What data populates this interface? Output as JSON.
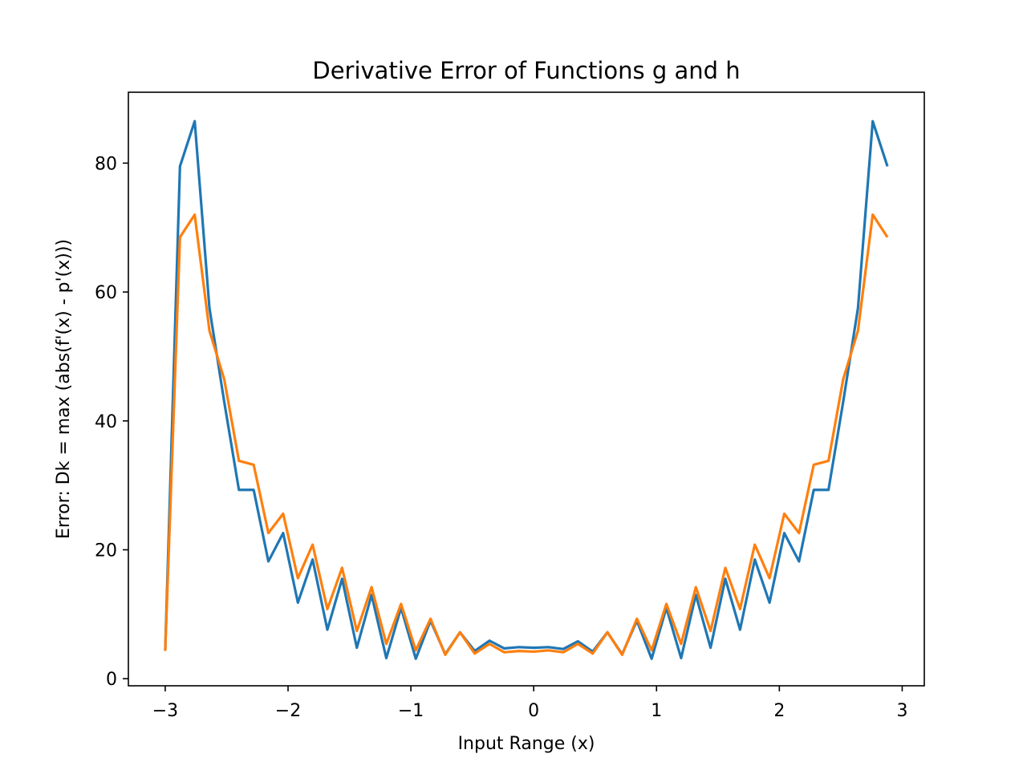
{
  "chart_data": {
    "type": "line",
    "title": "Derivative Error of Functions g and h",
    "xlabel": "Input Range (x)",
    "ylabel": "Error: Dk = max (abs(f'(x) - p'(x)))",
    "xlim": [
      -3.3,
      3.18
    ],
    "ylim": [
      -1.1,
      91
    ],
    "xticks": [
      -3,
      -2,
      -1,
      0,
      1,
      2,
      3
    ],
    "xtick_labels": [
      "−3",
      "−2",
      "−1",
      "0",
      "1",
      "2",
      "3"
    ],
    "yticks": [
      0,
      20,
      40,
      60,
      80
    ],
    "ytick_labels": [
      "0",
      "20",
      "40",
      "60",
      "80"
    ],
    "grid": false,
    "legend": "none",
    "x": [
      -3.0,
      -2.88,
      -2.76,
      -2.64,
      -2.52,
      -2.4,
      -2.28,
      -2.16,
      -2.04,
      -1.92,
      -1.8,
      -1.68,
      -1.56,
      -1.44,
      -1.32,
      -1.2,
      -1.08,
      -0.96,
      -0.84,
      -0.72,
      -0.6,
      -0.48,
      -0.36,
      -0.24,
      -0.12,
      0.0,
      0.12,
      0.24,
      0.36,
      0.48,
      0.6,
      0.72,
      0.84,
      0.96,
      1.08,
      1.2,
      1.32,
      1.44,
      1.56,
      1.68,
      1.8,
      1.92,
      2.04,
      2.16,
      2.28,
      2.4,
      2.52,
      2.64,
      2.76,
      2.88
    ],
    "series": [
      {
        "color": "#1f77b4",
        "values": [
          4.5,
          79.5,
          86.5,
          57.5,
          43.0,
          29.3,
          29.3,
          18.2,
          22.6,
          11.8,
          18.5,
          7.6,
          15.5,
          4.8,
          13.0,
          3.2,
          11.0,
          3.1,
          9.0,
          3.8,
          7.2,
          4.3,
          5.9,
          4.7,
          4.9,
          4.8,
          4.9,
          4.6,
          5.8,
          4.2,
          7.2,
          3.8,
          9.0,
          3.1,
          11.0,
          3.2,
          13.0,
          4.8,
          15.5,
          7.6,
          18.5,
          11.8,
          22.6,
          18.2,
          29.3,
          29.3,
          43.0,
          57.5,
          86.5,
          79.5
        ]
      },
      {
        "color": "#ff7f0e",
        "values": [
          4.3,
          68.5,
          72.0,
          54.0,
          46.5,
          33.8,
          33.2,
          22.6,
          25.6,
          15.6,
          20.8,
          10.8,
          17.2,
          7.4,
          14.2,
          5.4,
          11.6,
          4.4,
          9.3,
          3.7,
          7.2,
          3.9,
          5.4,
          4.1,
          4.3,
          4.2,
          4.4,
          4.1,
          5.4,
          3.9,
          7.2,
          3.7,
          9.3,
          4.4,
          11.6,
          5.4,
          14.2,
          7.4,
          17.2,
          10.8,
          20.8,
          15.6,
          25.6,
          22.6,
          33.2,
          33.8,
          46.5,
          54.0,
          72.0,
          68.5
        ]
      }
    ]
  }
}
